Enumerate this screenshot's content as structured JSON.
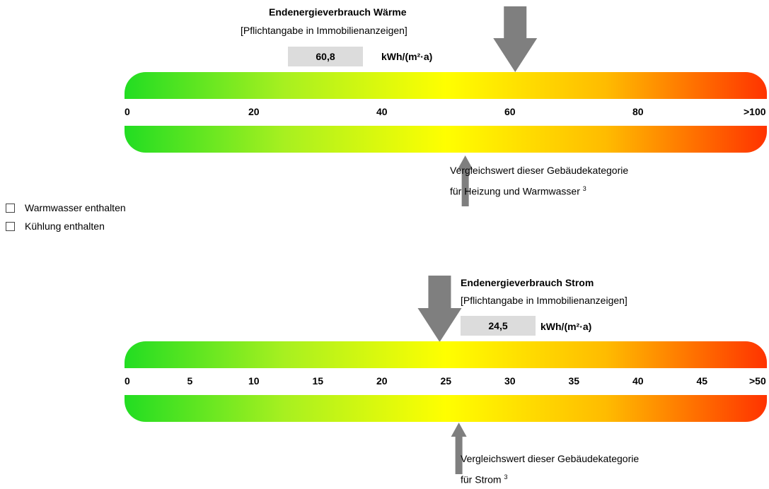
{
  "chart_data": [
    {
      "type": "scale",
      "title": "Endenergieverbrauch Wärme",
      "subtitle": "[Pflichtangabe in Immobilienanzeigen]",
      "value": 60.8,
      "value_label": "60,8",
      "unit": "kWh/(m²·a)",
      "ticks": [
        "0",
        "20",
        "40",
        "60",
        "80",
        ">100"
      ],
      "range": [
        0,
        100
      ],
      "comparison_value": 53,
      "comparison_label_line1": "Vergleichswert dieser Gebäudekategorie",
      "comparison_label_line2": "für Heizung und Warmwasser",
      "comparison_footnote": "3"
    },
    {
      "type": "scale",
      "title": "Endenergieverbrauch Strom",
      "subtitle": "[Pflichtangabe in Immobilienanzeigen]",
      "value": 24.5,
      "value_label": "24,5",
      "unit": "kWh/(m²·a)",
      "ticks": [
        "0",
        "5",
        "10",
        "15",
        "20",
        "25",
        "30",
        "35",
        "40",
        "45",
        ">50"
      ],
      "range": [
        0,
        50
      ],
      "comparison_value": 26,
      "comparison_label_line1": "Vergleichswert dieser Gebäudekategorie",
      "comparison_label_line2": "für Strom",
      "comparison_footnote": "3"
    }
  ],
  "checkboxes": [
    {
      "label": "Warmwasser enthalten",
      "checked": false
    },
    {
      "label": "Kühlung enthalten",
      "checked": false
    }
  ],
  "colors": {
    "arrow": "#7f7f7f",
    "value_box": "#dcdcdc"
  }
}
